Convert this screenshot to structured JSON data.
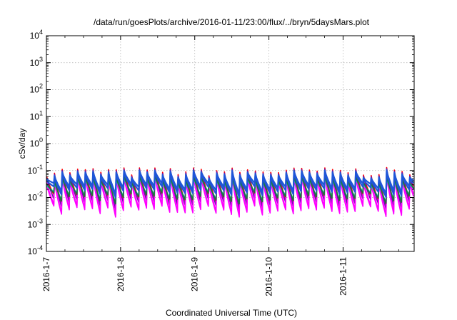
{
  "chart_data": {
    "type": "line",
    "title": "/data/run/goesPlots/archive/2016-01-11/23:00/flux/../bryn/5daysMars.plot",
    "xlabel": "Coordinated Universal Time (UTC)",
    "ylabel": "cSv/day",
    "yscale": "log",
    "ylim": [
      0.0001,
      10000
    ],
    "y_ticks": [
      {
        "base": "10",
        "exp": "-4",
        "value": 0.0001
      },
      {
        "base": "10",
        "exp": "-3",
        "value": 0.001
      },
      {
        "base": "10",
        "exp": "-2",
        "value": 0.01
      },
      {
        "base": "10",
        "exp": "-1",
        "value": 0.1
      },
      {
        "base": "10",
        "exp": "0",
        "value": 1
      },
      {
        "base": "10",
        "exp": "1",
        "value": 10
      },
      {
        "base": "10",
        "exp": "2",
        "value": 100
      },
      {
        "base": "10",
        "exp": "3",
        "value": 1000
      },
      {
        "base": "10",
        "exp": "4",
        "value": 10000
      }
    ],
    "x_range": [
      "2016-01-07 00:00",
      "2016-01-11 23:00"
    ],
    "x_ticks": [
      "2016-1-7",
      "2016-1-8",
      "2016-1-9",
      "2016-1-10",
      "2016-1-11"
    ],
    "grid": true,
    "legend": "none",
    "pattern": {
      "period_hours": 2.5,
      "peak_range": [
        0.06,
        0.13
      ],
      "trough_range": [
        0.002,
        0.006
      ]
    },
    "series": [
      {
        "color": "#ff0000",
        "peak_factor": 1.0,
        "trough_factor": 2.2
      },
      {
        "color": "#6a0dad",
        "peak_factor": 0.9,
        "trough_factor": 1.6
      },
      {
        "color": "#ff00ff",
        "peak_factor": 0.65,
        "trough_factor": 1.0
      },
      {
        "color": "#ff00ff",
        "peak_factor": 0.5,
        "trough_factor": 0.85
      },
      {
        "color": "#20c0c0",
        "peak_factor": 0.45,
        "trough_factor": 3.0
      },
      {
        "color": "#1a7a3a",
        "peak_factor": 0.55,
        "trough_factor": 2.6
      },
      {
        "color": "#1e56d8",
        "peak_factor": 0.7,
        "trough_factor": 4.5
      },
      {
        "color": "#1e56d8",
        "peak_factor": 0.8,
        "trough_factor": 6.0
      }
    ]
  }
}
